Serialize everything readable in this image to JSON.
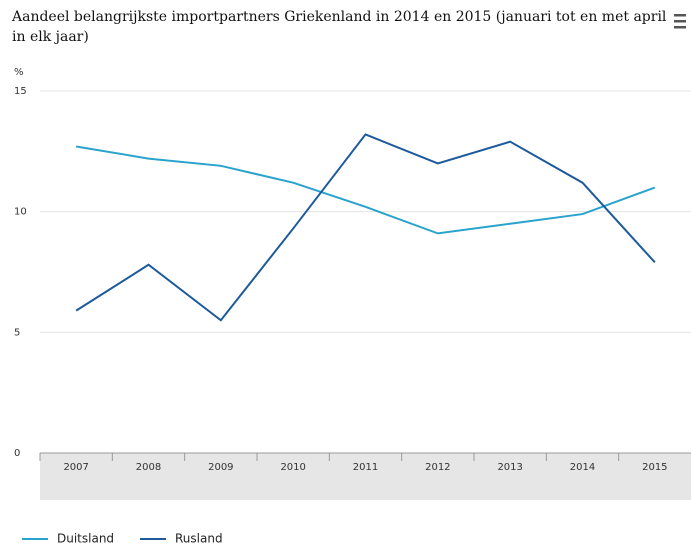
{
  "chart_data": {
    "type": "line",
    "title": [
      "Aandeel belangrijkste importpartners Griekenland in 2014 en 2015 (januari tot en met april",
      "in elk jaar)"
    ],
    "y_label": "%",
    "categories": [
      "2007",
      "2008",
      "2009",
      "2010",
      "2011",
      "2012",
      "2013",
      "2014",
      "2015"
    ],
    "series": [
      {
        "name": "Duitsland",
        "color": "#2aa3cc",
        "values": [
          12.7,
          12.2,
          11.9,
          11.2,
          10.2,
          9.1,
          9.5,
          9.9,
          11.0
        ]
      },
      {
        "name": "Rusland",
        "color": "#1c5a9c",
        "values": [
          5.9,
          7.8,
          5.5,
          9.3,
          13.2,
          12.0,
          12.9,
          11.2,
          7.9
        ]
      }
    ],
    "ylim": [
      0,
      15
    ],
    "yticks": [
      0,
      5,
      10,
      15
    ],
    "grid": true
  }
}
